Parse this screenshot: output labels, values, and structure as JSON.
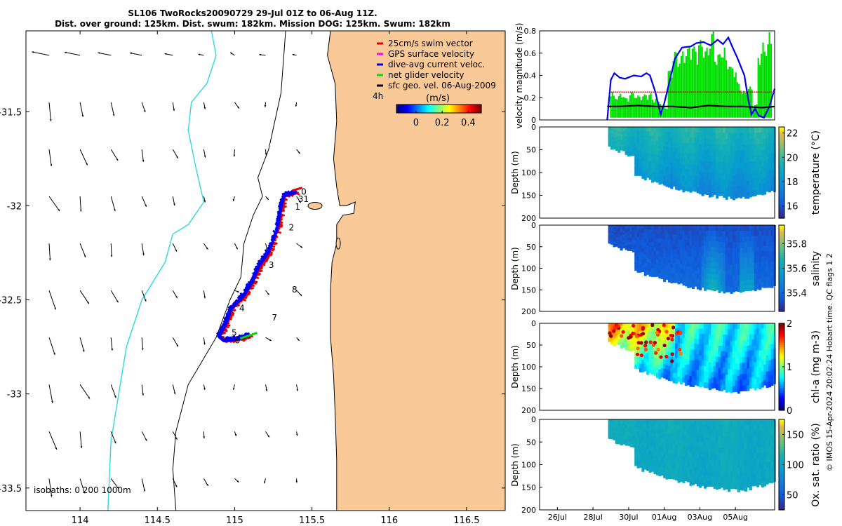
{
  "title": {
    "line1": "SL106 TwoRocks20090729 29-Jul 01Z to 06-Aug 11Z.",
    "line2": "Dist. over ground: 125km. Dist. swum: 182km. Mission DOG: 125km. Swum: 182km"
  },
  "footer": "© IMOS 15-Apr-2024 20:02:24 Hobart time. QC flags 1  2",
  "colors": {
    "land": "#f9c998",
    "coastline": "#000000",
    "isobath_shelf": "#000000",
    "isobath_deep": "#30d8e0",
    "swim": "#e00000",
    "gps": "#ff00ff",
    "dive": "#0000f0",
    "net": "#00e000",
    "geo": "#000000"
  },
  "chart_data": [
    {
      "type": "scatter",
      "name": "track-map",
      "xlabel": "",
      "ylabel": "",
      "xlim": [
        113.65,
        116.75
      ],
      "ylim": [
        -33.62,
        -31.07
      ],
      "xticks": [
        114,
        114.5,
        115,
        115.5,
        116,
        116.5
      ],
      "xtick_labels": [
        "114",
        "114.5",
        "115",
        "115.5",
        "116",
        "116.5"
      ],
      "yticks": [
        -31.5,
        -32,
        -32.5,
        -33,
        -33.5
      ],
      "ytick_labels": [
        "-31.5",
        "-32",
        "-32.5",
        "-33",
        "-33.5"
      ],
      "legend": {
        "position": "top-right",
        "entries": [
          "25cm/s swim vector",
          "GPS surface velocity",
          "dive-avg current veloc.",
          "net glider velocity",
          "sfc geo. vel. 06-Aug-2009"
        ]
      },
      "interval_label": "4h",
      "colorbar": {
        "label": "(m/s)",
        "range": [
          -0.15,
          0.5
        ],
        "ticks": [
          0,
          0.2,
          0.4
        ],
        "tick_labels": [
          "0",
          "0.2",
          "0.4"
        ]
      },
      "isobath_note": "isobaths: 0   200   1000m",
      "track_lon": [
        115.4,
        115.32,
        115.3,
        115.28,
        115.22,
        115.16,
        115.12,
        115.06,
        114.98,
        114.95,
        114.9,
        114.93,
        115.03,
        115.1
      ],
      "track_lat": [
        -31.93,
        -31.95,
        -32.02,
        -32.12,
        -32.25,
        -32.32,
        -32.4,
        -32.48,
        -32.55,
        -32.62,
        -32.7,
        -32.72,
        -32.71,
        -32.69
      ],
      "day_markers": [
        {
          "label": "0",
          "lon": 115.43,
          "lat": -31.94
        },
        {
          "label": "1",
          "lon": 115.39,
          "lat": -32.02
        },
        {
          "label": "2",
          "lon": 115.35,
          "lat": -32.13
        },
        {
          "label": "3",
          "lon": 115.22,
          "lat": -32.33
        },
        {
          "label": "4",
          "lon": 115.03,
          "lat": -32.56
        },
        {
          "label": "5",
          "lon": 114.98,
          "lat": -32.69
        },
        {
          "label": "6",
          "lon": 115.0,
          "lat": -32.73
        },
        {
          "label": "7",
          "lon": 115.24,
          "lat": -32.61
        },
        {
          "label": "8",
          "lon": 115.37,
          "lat": -32.46
        },
        {
          "label": "31",
          "lon": 115.41,
          "lat": -31.98
        }
      ]
    },
    {
      "type": "line",
      "name": "velocity-magnitude",
      "ylabel": "velocity magnitude (m/s)",
      "xlim": [
        25.0,
        38.2
      ],
      "ylim": [
        0,
        0.8
      ],
      "yticks": [
        0,
        0.2,
        0.4,
        0.6,
        0.8
      ],
      "ytick_labels": [
        "0",
        "0.2",
        "0.4",
        "0.6",
        "0.8"
      ],
      "series": [
        {
          "name": "dive-avg current veloc.",
          "color": "#0000f0",
          "x": [
            28.8,
            29.0,
            29.2,
            29.5,
            29.8,
            30.3,
            30.7,
            31.0,
            31.2,
            31.5,
            31.8,
            32.0,
            32.2,
            32.6,
            33.0,
            33.5,
            33.8,
            34.2,
            34.6,
            35.0,
            35.3,
            35.6,
            35.9,
            36.1,
            36.3,
            36.5,
            36.7,
            36.9,
            37.1,
            37.3,
            37.6,
            37.9,
            38.2
          ],
          "y": [
            0.0,
            0.36,
            0.42,
            0.38,
            0.37,
            0.4,
            0.39,
            0.42,
            0.4,
            0.25,
            0.05,
            0.15,
            0.28,
            0.55,
            0.65,
            0.66,
            0.69,
            0.7,
            0.67,
            0.72,
            0.68,
            0.74,
            0.63,
            0.56,
            0.48,
            0.4,
            0.2,
            0.05,
            0.1,
            0.04,
            0.02,
            0.12,
            0.28
          ]
        },
        {
          "name": "25cm/s swim vector",
          "color": "#e00000",
          "x": [
            29.0,
            31.8,
            35.9,
            38.2
          ],
          "y": [
            0.25,
            0.25,
            0.25,
            0.25
          ]
        },
        {
          "name": "sfc geo. vel.",
          "color": "#000000",
          "x": [
            28.8,
            29.5,
            30.5,
            31.5,
            32.5,
            33.5,
            34.5,
            35.5,
            36.5,
            37.5,
            38.2
          ],
          "y": [
            0.12,
            0.12,
            0.13,
            0.12,
            0.12,
            0.11,
            0.13,
            0.12,
            0.12,
            0.11,
            0.12
          ]
        }
      ],
      "green_spikes_x": [
        29.0,
        29.3,
        29.6,
        29.9,
        30.2,
        30.5,
        30.8,
        31.1,
        31.4,
        31.7,
        32.0,
        32.3,
        32.6,
        32.9,
        33.2,
        33.5,
        33.8,
        34.1,
        34.4,
        34.7,
        35.0,
        35.3,
        35.6,
        35.9,
        36.2,
        36.5,
        36.8,
        37.1,
        37.4,
        37.7,
        38.0
      ],
      "green_spikes_y": [
        0.26,
        0.22,
        0.24,
        0.2,
        0.25,
        0.22,
        0.23,
        0.24,
        0.2,
        0.18,
        0.12,
        0.45,
        0.62,
        0.58,
        0.64,
        0.7,
        0.66,
        0.72,
        0.65,
        0.8,
        0.6,
        0.66,
        0.55,
        0.48,
        0.34,
        0.26,
        0.3,
        0.14,
        0.62,
        0.7,
        0.8
      ]
    },
    {
      "type": "heatmap",
      "name": "temperature",
      "ylabel": "Depth (m)",
      "colorbar_label": "temperature (°C)",
      "ylim": [
        200,
        0
      ],
      "yticks": [
        0,
        50,
        100,
        150,
        200
      ],
      "ytick_labels": [
        "0",
        "50",
        "100",
        "150",
        "200"
      ],
      "clim": [
        15,
        22.5
      ],
      "cticks": [
        16,
        18,
        20,
        22
      ],
      "ctick_labels": [
        "16",
        "18",
        "20",
        "22"
      ]
    },
    {
      "type": "heatmap",
      "name": "salinity",
      "ylabel": "Depth (m)",
      "colorbar_label": "salinity",
      "ylim": [
        200,
        0
      ],
      "yticks": [
        0,
        50,
        100,
        150,
        200
      ],
      "ytick_labels": [
        "0",
        "50",
        "100",
        "150",
        "200"
      ],
      "clim": [
        35.25,
        35.95
      ],
      "cticks": [
        35.4,
        35.6,
        35.8
      ],
      "ctick_labels": [
        "35.4",
        "35.6",
        "35.8"
      ]
    },
    {
      "type": "heatmap",
      "name": "chlorophyll",
      "ylabel": "Depth (m)",
      "colorbar_label": "chl-a (mg m-3)",
      "ylim": [
        200,
        0
      ],
      "yticks": [
        0,
        50,
        100,
        150,
        200
      ],
      "ytick_labels": [
        "0",
        "50",
        "100",
        "150",
        "200"
      ],
      "clim": [
        0,
        2
      ],
      "cticks": [
        0,
        1,
        2
      ],
      "ctick_labels": [
        "0",
        "1",
        "2"
      ]
    },
    {
      "type": "heatmap",
      "name": "oxygen",
      "ylabel": "Depth (m)",
      "colorbar_label": "Ox. sat. ratio (%)",
      "ylim": [
        200,
        0
      ],
      "yticks": [
        0,
        50,
        100,
        150,
        200
      ],
      "ytick_labels": [
        "0",
        "50",
        "100",
        "150",
        "200"
      ],
      "clim": [
        25,
        175
      ],
      "cticks": [
        50,
        100,
        150
      ],
      "ctick_labels": [
        "50",
        "100",
        "150"
      ],
      "xticks": [
        26,
        28,
        30,
        32,
        34,
        36
      ],
      "xtick_labels": [
        "26Jul",
        "28Jul",
        "30Jul",
        "01Aug",
        "03Aug",
        "05Aug"
      ]
    }
  ]
}
